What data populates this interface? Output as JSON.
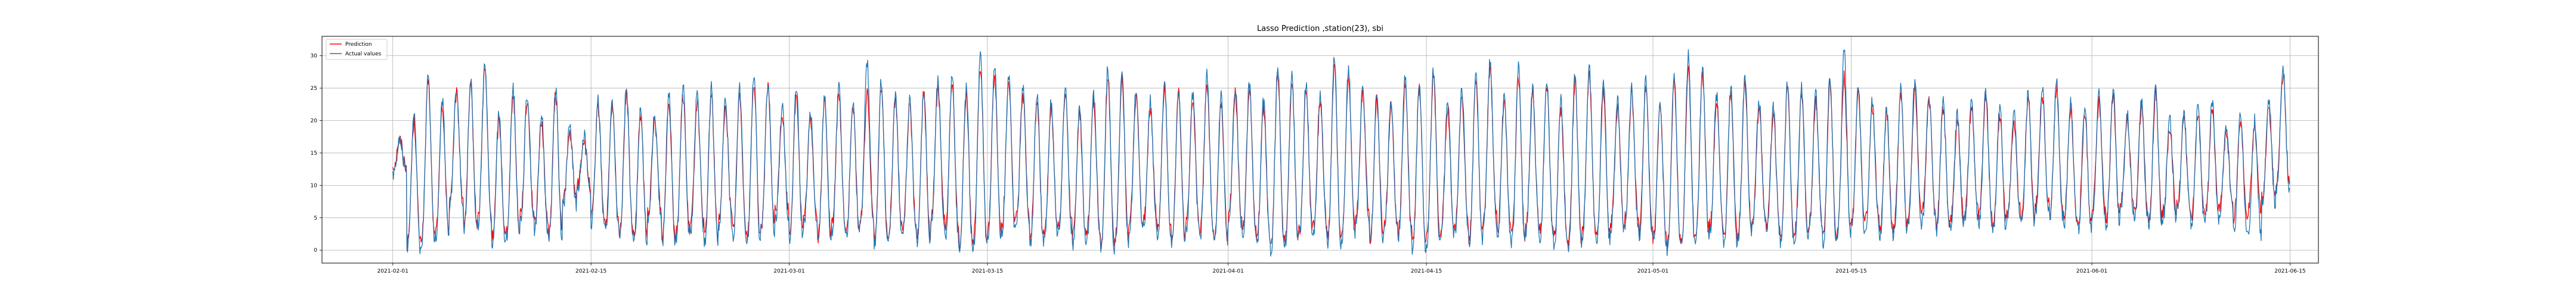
{
  "chart_data": {
    "type": "line",
    "title": "Lasso Prediction ,station(23), sbi",
    "xlabel": "",
    "ylabel": "",
    "xlim": [
      "2021-01-27",
      "2021-06-17"
    ],
    "ylim": [
      -2,
      33
    ],
    "grid": true,
    "legend_position": "top-left",
    "x_ticks": [
      "2021-02-01",
      "2021-02-15",
      "2021-03-01",
      "2021-03-15",
      "2021-04-01",
      "2021-04-15",
      "2021-05-01",
      "2021-05-15",
      "2021-06-01",
      "2021-06-15"
    ],
    "y_ticks": [
      0,
      5,
      10,
      15,
      20,
      25,
      30
    ],
    "x_range_data": [
      "2021-02-01",
      "2021-06-11"
    ],
    "series": [
      {
        "name": "Prediction",
        "color": "#ff0000",
        "samples_per_day": 24,
        "daily_peaks": [
          17,
          20,
          26,
          22,
          24,
          25,
          28,
          20,
          24,
          23,
          20,
          24,
          18,
          17,
          22,
          22,
          24,
          21,
          20,
          23,
          24,
          23,
          24,
          22,
          24,
          26,
          25,
          21,
          24,
          20,
          23,
          24,
          22,
          24,
          25,
          23,
          22,
          24,
          25,
          26,
          24,
          28,
          27,
          26,
          24,
          23,
          22,
          24,
          21,
          23,
          27,
          26,
          24,
          22,
          25,
          24,
          23,
          26,
          23,
          24,
          25,
          22,
          27,
          26,
          25,
          23,
          28,
          27,
          24,
          23,
          22,
          26,
          25,
          27,
          22,
          24,
          26,
          28,
          23,
          27,
          24,
          25,
          22,
          26,
          27,
          25,
          22,
          24,
          25,
          22,
          26,
          28,
          27,
          23,
          24,
          26,
          22,
          21,
          25,
          24,
          23,
          26,
          27,
          24,
          22,
          21,
          24,
          25,
          23,
          22,
          20,
          22,
          24,
          21,
          20,
          23,
          24,
          25,
          22,
          21,
          23,
          24,
          20,
          22,
          24,
          19,
          20,
          21,
          22,
          18,
          20,
          19,
          22,
          27
        ],
        "daily_lows": [
          13,
          1,
          2,
          3,
          8,
          4,
          5,
          2,
          3,
          6,
          4,
          3,
          8,
          10,
          5,
          4,
          3,
          2,
          6,
          2,
          3,
          4,
          2,
          5,
          3,
          2,
          4,
          6,
          3,
          5,
          2,
          4,
          3,
          5,
          2,
          3,
          4,
          2,
          5,
          3,
          1,
          2,
          3,
          4,
          5,
          2,
          3,
          4,
          2,
          3,
          1,
          2,
          4,
          5,
          3,
          2,
          4,
          3,
          2,
          5,
          3,
          2,
          1,
          2,
          3,
          4,
          2,
          3,
          5,
          2,
          4,
          3,
          1,
          2,
          3,
          4,
          2,
          5,
          3,
          2,
          4,
          3,
          2,
          1,
          3,
          2,
          4,
          5,
          3,
          2,
          1,
          2,
          3,
          4,
          2,
          3,
          5,
          4,
          2,
          3,
          4,
          2,
          3,
          4,
          5,
          3,
          4,
          5,
          6,
          4,
          5,
          6,
          5,
          4,
          6,
          5,
          7,
          6,
          5,
          4,
          6,
          5,
          7,
          6,
          5,
          6,
          7,
          5,
          6,
          7,
          5,
          6,
          8,
          10
        ]
      },
      {
        "name": "Actual values",
        "color": "#1f77b4",
        "samples_per_day": 24,
        "daily_peaks": [
          17,
          21,
          27,
          23,
          25,
          26,
          29,
          21,
          25,
          24,
          21,
          25,
          19,
          18,
          23,
          23,
          25,
          22,
          21,
          24,
          25,
          24,
          25,
          23,
          25,
          27,
          26,
          22,
          25,
          21,
          24,
          25,
          23,
          29,
          26,
          24,
          23,
          25,
          26,
          27,
          25,
          30,
          28,
          27,
          25,
          24,
          23,
          25,
          22,
          24,
          28,
          27,
          25,
          23,
          26,
          25,
          24,
          27,
          24,
          25,
          26,
          23,
          28,
          27,
          26,
          24,
          30,
          28,
          25,
          24,
          23,
          27,
          26,
          28,
          23,
          25,
          27,
          29,
          24,
          28,
          25,
          26,
          23,
          27,
          28,
          26,
          23,
          25,
          26,
          23,
          27,
          30,
          28,
          24,
          25,
          27,
          23,
          22,
          26,
          25,
          24,
          27,
          31,
          25,
          23,
          22,
          25,
          26,
          24,
          23,
          21,
          23,
          25,
          22,
          21,
          24,
          25,
          26,
          23,
          22,
          24,
          25,
          21,
          23,
          25,
          20,
          21,
          22,
          23,
          19,
          21,
          20,
          23,
          28
        ],
        "daily_lows": [
          12,
          0,
          1,
          2,
          7,
          3,
          4,
          1,
          2,
          5,
          3,
          2,
          7,
          9,
          4,
          3,
          2,
          1,
          5,
          1,
          2,
          3,
          1,
          4,
          2,
          1,
          3,
          5,
          2,
          4,
          1,
          3,
          2,
          4,
          1,
          2,
          3,
          1,
          4,
          2,
          0,
          1,
          2,
          3,
          4,
          1,
          2,
          3,
          1,
          2,
          0,
          1,
          3,
          4,
          2,
          1,
          3,
          2,
          1,
          4,
          2,
          1,
          0,
          1,
          2,
          3,
          1,
          2,
          4,
          1,
          3,
          2,
          0,
          1,
          2,
          3,
          1,
          4,
          2,
          1,
          3,
          2,
          1,
          0,
          2,
          1,
          3,
          4,
          2,
          1,
          0,
          1,
          2,
          3,
          1,
          2,
          4,
          3,
          1,
          2,
          3,
          1,
          2,
          3,
          4,
          2,
          3,
          4,
          5,
          3,
          4,
          5,
          4,
          3,
          5,
          4,
          6,
          5,
          4,
          3,
          5,
          4,
          6,
          5,
          4,
          5,
          6,
          4,
          5,
          6,
          3,
          2,
          7,
          9
        ]
      }
    ]
  }
}
